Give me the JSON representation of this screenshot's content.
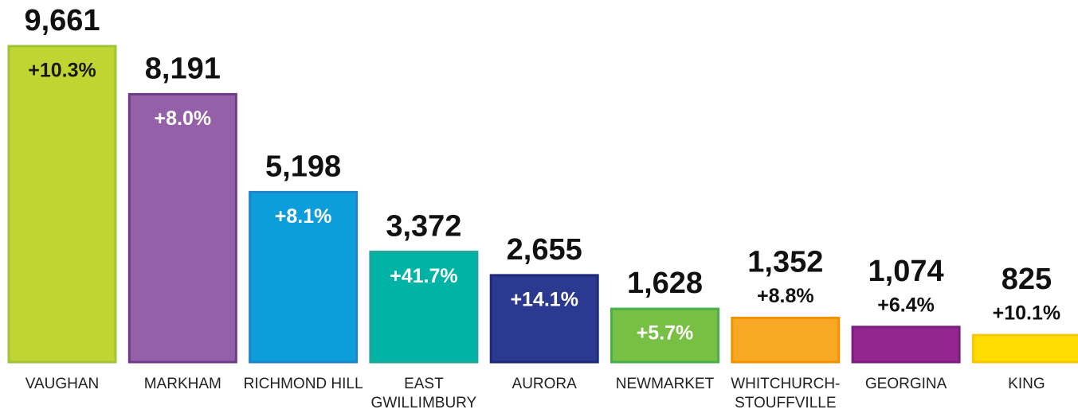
{
  "chart_data": {
    "type": "bar",
    "categories": [
      "VAUGHAN",
      "MARKHAM",
      "RICHMOND HILL",
      "EAST GWILLIMBURY",
      "AURORA",
      "NEWMARKET",
      "WHITCHURCH-STOUFFVILLE",
      "GEORGINA",
      "KING"
    ],
    "values": [
      9661,
      8191,
      5198,
      3372,
      2655,
      1628,
      1352,
      1074,
      825
    ],
    "value_labels": [
      "9,661",
      "8,191",
      "5,198",
      "3,372",
      "2,655",
      "1,628",
      "1,352",
      "1,074",
      "825"
    ],
    "change_labels": [
      "+10.3%",
      "+8.0%",
      "+8.1%",
      "+41.7%",
      "+14.1%",
      "+5.7%",
      "+8.8%",
      "+6.4%",
      "+10.1%"
    ],
    "colors": [
      "#c0d531",
      "#9461a8",
      "#0c9ddb",
      "#00b3a5",
      "#2b3990",
      "#77c043",
      "#f9a825",
      "#93278f",
      "#ffdd00"
    ],
    "border_colors": [
      "#9fc43a",
      "#6d3a8c",
      "#1f85c8",
      "#1fa89a",
      "#1e2a78",
      "#4aae4a",
      "#f39200",
      "#7a1f80",
      "#f7c600"
    ]
  }
}
